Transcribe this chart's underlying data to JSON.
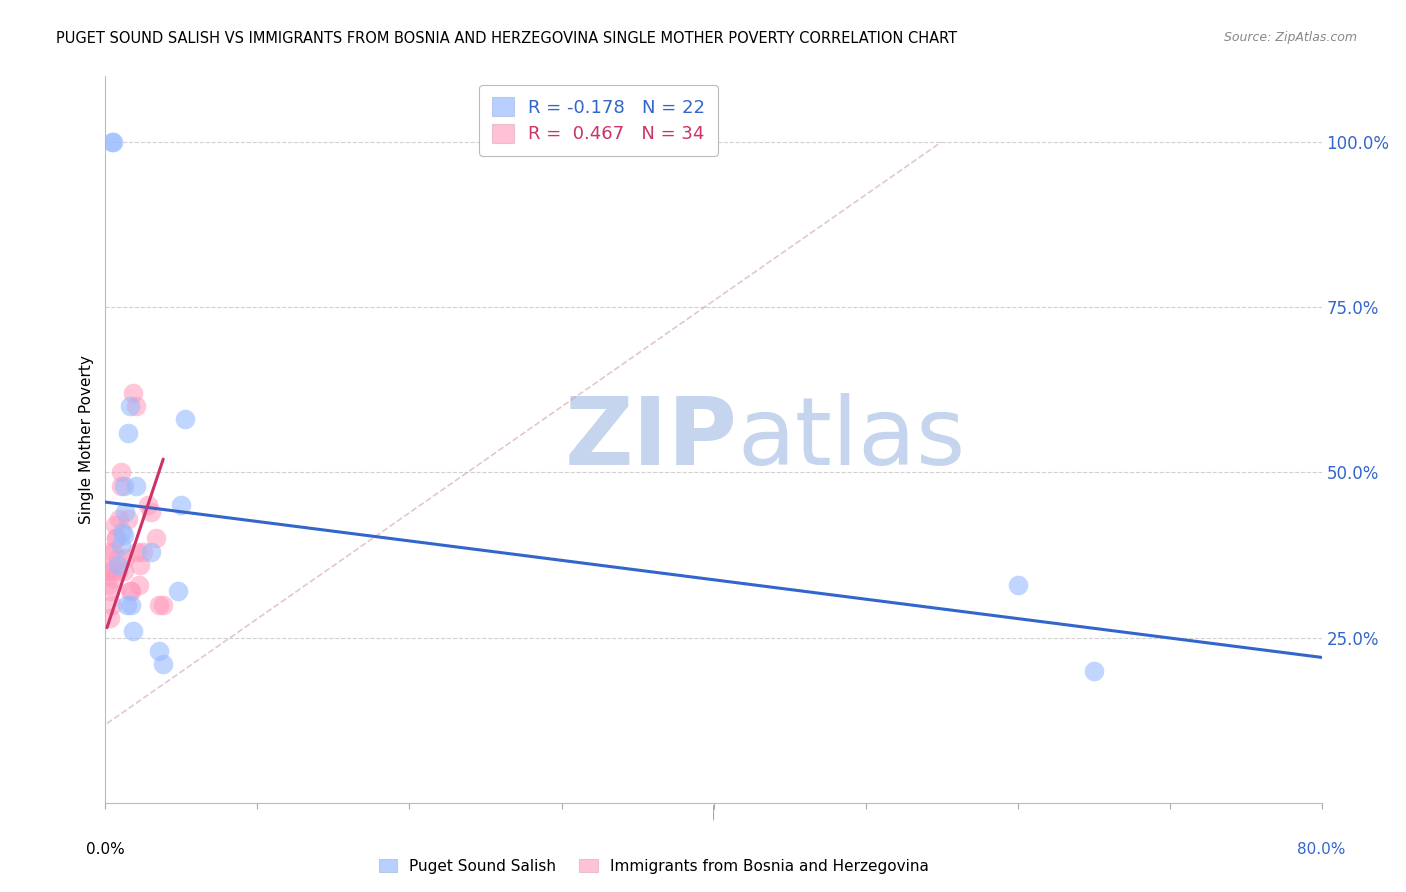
{
  "title": "PUGET SOUND SALISH VS IMMIGRANTS FROM BOSNIA AND HERZEGOVINA SINGLE MOTHER POVERTY CORRELATION CHART",
  "source": "Source: ZipAtlas.com",
  "ylabel": "Single Mother Poverty",
  "right_yticks": [
    "100.0%",
    "75.0%",
    "50.0%",
    "25.0%"
  ],
  "right_ytick_vals": [
    1.0,
    0.75,
    0.5,
    0.25
  ],
  "legend_label1": "Puget Sound Salish",
  "legend_label2": "Immigrants from Bosnia and Herzegovina",
  "R1": -0.178,
  "N1": 22,
  "R2": 0.467,
  "N2": 34,
  "color_blue": "#99bbff",
  "color_pink": "#ff99bb",
  "color_blue_line": "#3366cc",
  "color_pink_line": "#cc3366",
  "watermark_zip_color": "#c8d8f0",
  "watermark_atlas_color": "#c8d8f0",
  "blue_points_x": [
    0.004,
    0.005,
    0.008,
    0.01,
    0.011,
    0.012,
    0.012,
    0.013,
    0.014,
    0.015,
    0.016,
    0.017,
    0.018,
    0.02,
    0.03,
    0.035,
    0.038,
    0.048,
    0.05,
    0.052,
    0.6,
    0.65
  ],
  "blue_points_y": [
    1.0,
    1.0,
    0.36,
    0.39,
    0.41,
    0.405,
    0.48,
    0.44,
    0.3,
    0.56,
    0.6,
    0.3,
    0.26,
    0.48,
    0.38,
    0.23,
    0.21,
    0.32,
    0.45,
    0.58,
    0.33,
    0.2
  ],
  "pink_points_x": [
    0.001,
    0.001,
    0.002,
    0.002,
    0.003,
    0.003,
    0.004,
    0.004,
    0.005,
    0.005,
    0.006,
    0.007,
    0.007,
    0.008,
    0.008,
    0.009,
    0.01,
    0.01,
    0.012,
    0.013,
    0.015,
    0.016,
    0.017,
    0.018,
    0.02,
    0.021,
    0.022,
    0.023,
    0.025,
    0.028,
    0.03,
    0.033,
    0.035,
    0.038
  ],
  "pink_points_y": [
    0.38,
    0.35,
    0.33,
    0.35,
    0.32,
    0.28,
    0.3,
    0.35,
    0.34,
    0.38,
    0.42,
    0.4,
    0.4,
    0.37,
    0.35,
    0.43,
    0.48,
    0.5,
    0.35,
    0.37,
    0.43,
    0.32,
    0.32,
    0.62,
    0.6,
    0.38,
    0.33,
    0.36,
    0.38,
    0.45,
    0.44,
    0.4,
    0.3,
    0.3
  ],
  "xlim": [
    0.0,
    0.8
  ],
  "ylim": [
    0.0,
    1.1
  ],
  "blue_line_x": [
    0.0,
    0.8
  ],
  "blue_line_y": [
    0.455,
    0.22
  ],
  "pink_line_x": [
    0.001,
    0.038
  ],
  "pink_line_y": [
    0.265,
    0.52
  ],
  "dashed_line_x": [
    0.001,
    0.55
  ],
  "dashed_line_y": [
    0.12,
    1.0
  ]
}
